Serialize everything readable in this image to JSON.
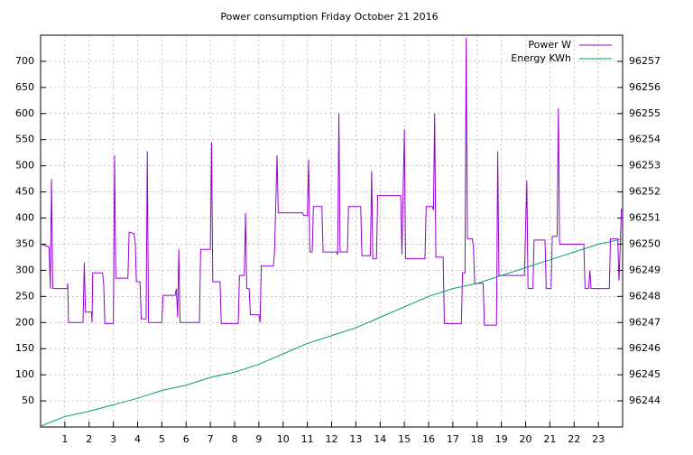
{
  "chart_data": {
    "type": "line",
    "title": "Power consumption Friday October 21 2016",
    "xlim": [
      0,
      24
    ],
    "xticks": [
      1,
      2,
      3,
      4,
      5,
      6,
      7,
      8,
      9,
      10,
      11,
      12,
      13,
      14,
      15,
      16,
      17,
      18,
      19,
      20,
      21,
      22,
      23
    ],
    "ylim": [
      0,
      750
    ],
    "yticks": [
      50,
      100,
      150,
      200,
      250,
      300,
      350,
      400,
      450,
      500,
      550,
      600,
      650,
      700
    ],
    "y2lim": [
      96243,
      96258
    ],
    "y2ticks": [
      96244,
      96245,
      96246,
      96247,
      96248,
      96249,
      96250,
      96251,
      96252,
      96253,
      96254,
      96255,
      96256,
      96257
    ],
    "grid": true,
    "legend": "top-right",
    "series": [
      {
        "name": "Power W",
        "color": "#9400d3",
        "x": [
          0,
          0.35,
          0.4,
          0.45,
          0.5,
          1.1,
          1.12,
          1.15,
          1.75,
          1.8,
          1.85,
          2.1,
          2.12,
          2.15,
          2.55,
          2.6,
          2.65,
          3.0,
          3.05,
          3.1,
          3.6,
          3.65,
          3.85,
          3.9,
          3.95,
          4.1,
          4.15,
          4.35,
          4.4,
          4.45,
          5.0,
          5.05,
          5.55,
          5.6,
          5.65,
          5.7,
          5.75,
          6.55,
          6.6,
          7.0,
          7.05,
          7.1,
          7.4,
          7.45,
          8.15,
          8.2,
          8.4,
          8.45,
          8.5,
          8.6,
          8.65,
          9.0,
          9.05,
          9.1,
          9.6,
          9.65,
          9.75,
          9.8,
          10.8,
          10.85,
          11.0,
          11.05,
          11.1,
          11.2,
          11.25,
          11.6,
          11.65,
          12.2,
          12.25,
          12.3,
          12.35,
          12.65,
          12.7,
          13.2,
          13.25,
          13.6,
          13.65,
          13.7,
          13.85,
          13.9,
          14.85,
          14.9,
          15.0,
          15.05,
          15.85,
          15.9,
          16.15,
          16.2,
          16.25,
          16.3,
          16.6,
          16.65,
          17.35,
          17.4,
          17.5,
          17.55,
          17.6,
          17.8,
          17.85,
          17.9,
          18.25,
          18.3,
          18.8,
          18.85,
          18.9,
          19.95,
          20.05,
          20.1,
          20.3,
          20.35,
          20.8,
          20.85,
          21.05,
          21.1,
          21.3,
          21.35,
          21.4,
          22.4,
          22.45,
          22.6,
          22.65,
          22.7,
          23.45,
          23.5,
          23.8,
          23.85,
          23.9,
          23.95
        ],
        "values": [
          350,
          345,
          265,
          475,
          265,
          265,
          275,
          200,
          200,
          315,
          220,
          220,
          200,
          295,
          295,
          275,
          198,
          198,
          520,
          285,
          285,
          373,
          370,
          355,
          278,
          278,
          207,
          207,
          528,
          200,
          200,
          252,
          252,
          265,
          210,
          340,
          200,
          200,
          340,
          340,
          545,
          278,
          278,
          198,
          198,
          290,
          290,
          410,
          265,
          265,
          215,
          215,
          200,
          308,
          308,
          340,
          520,
          410,
          410,
          405,
          405,
          512,
          335,
          335,
          422,
          422,
          335,
          335,
          330,
          600,
          335,
          335,
          422,
          422,
          328,
          328,
          490,
          322,
          322,
          443,
          443,
          330,
          570,
          322,
          322,
          422,
          422,
          415,
          600,
          325,
          325,
          198,
          198,
          295,
          295,
          745,
          360,
          360,
          345,
          275,
          275,
          195,
          195,
          528,
          290,
          290,
          472,
          265,
          265,
          358,
          358,
          265,
          265,
          365,
          365,
          610,
          350,
          350,
          265,
          265,
          300,
          265,
          265,
          360,
          360,
          280,
          345,
          418
        ]
      },
      {
        "name": "Energy KWh",
        "color": "#009e73",
        "axis": "y2",
        "x": [
          0,
          1,
          2,
          3,
          4,
          5,
          6,
          7,
          8,
          9,
          10,
          11,
          12,
          13,
          14,
          15,
          16,
          17,
          18,
          19,
          20,
          21,
          22,
          23,
          24
        ],
        "values": [
          96243.03,
          96243.4,
          96243.6,
          96243.85,
          96244.1,
          96244.4,
          96244.6,
          96244.9,
          96245.1,
          96245.4,
          96245.8,
          96246.2,
          96246.5,
          96246.8,
          96247.2,
          96247.6,
          96248.0,
          96248.3,
          96248.5,
          96248.8,
          96249.1,
          96249.4,
          96249.7,
          96250.0,
          96250.2
        ]
      }
    ]
  }
}
